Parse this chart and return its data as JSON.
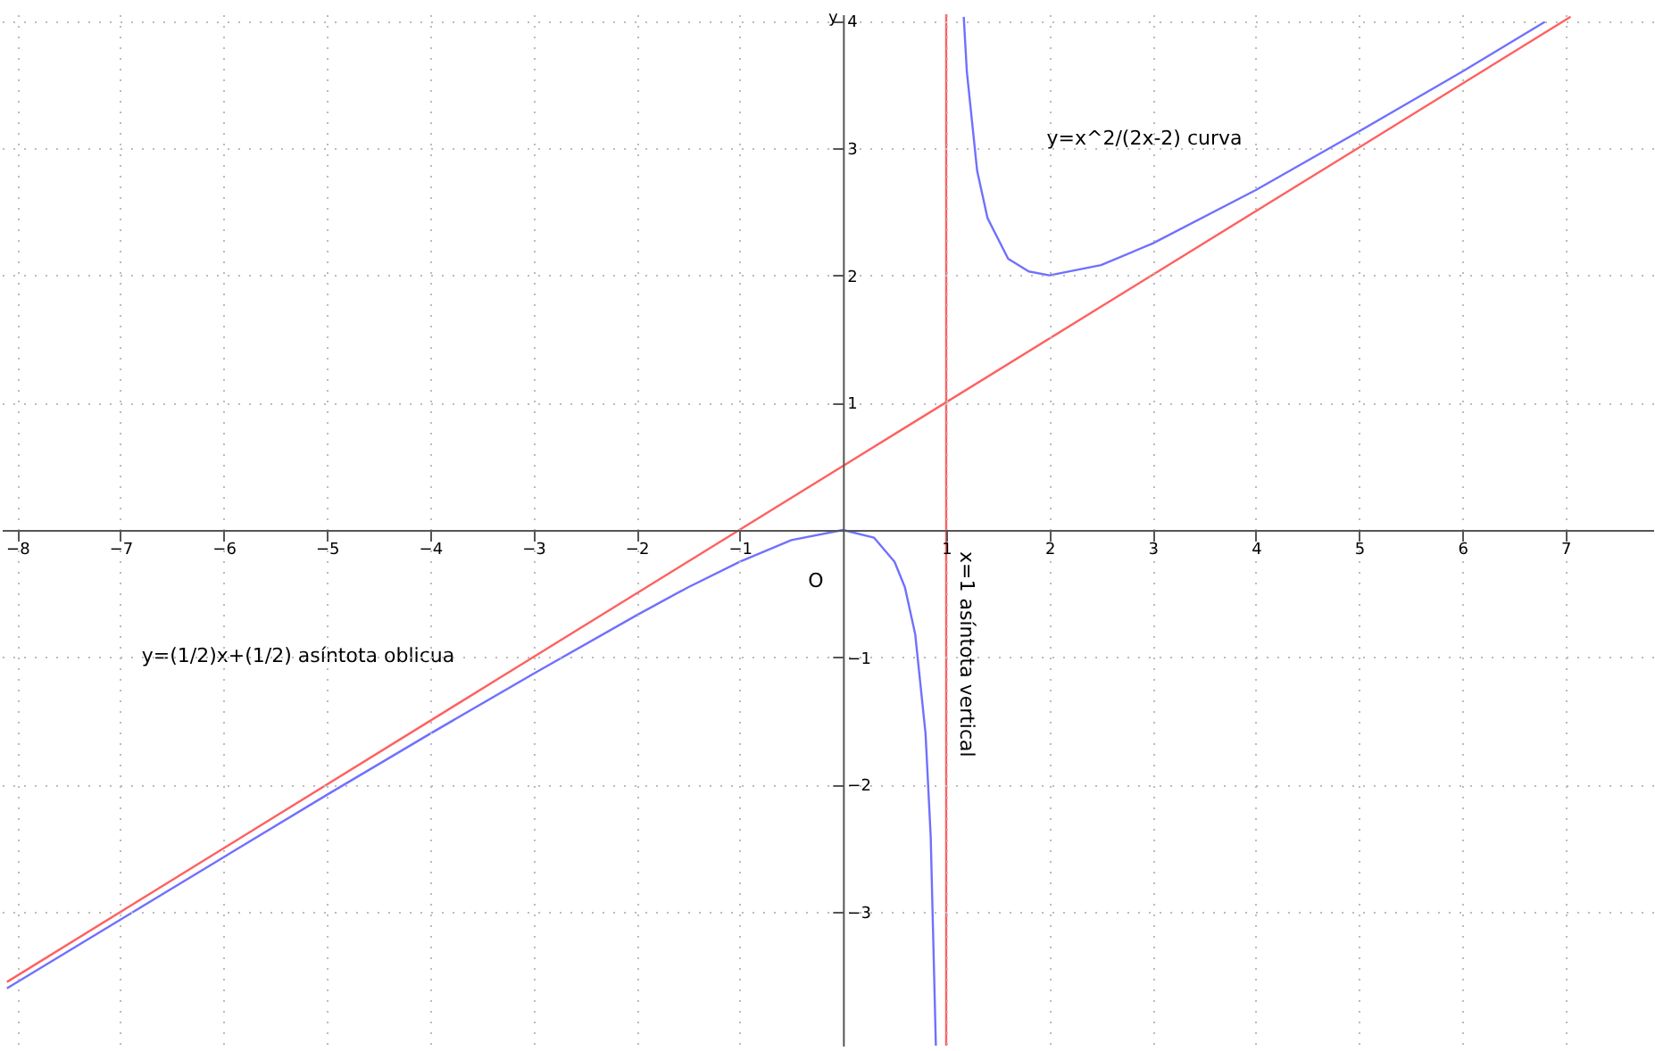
{
  "chart_data": {
    "type": "line",
    "ylabel": "y",
    "xlim": [
      -8.15,
      7.85
    ],
    "ylim": [
      -4.05,
      4.05
    ],
    "xticks": [
      -8,
      -7,
      -6,
      -5,
      -4,
      -3,
      -2,
      -1,
      1,
      2,
      3,
      4,
      5,
      6,
      7
    ],
    "yticks": [
      -3,
      -2,
      -1,
      1,
      2,
      3,
      4
    ],
    "grid": true,
    "line_style": "solid",
    "series": [
      {
        "color": "#7070ff",
        "x": [
          -8.1,
          -7,
          -6,
          -5,
          -4,
          -3,
          -2,
          -1.5,
          -1,
          -0.5,
          0,
          0.3,
          0.5,
          0.6,
          0.7,
          0.8,
          0.85,
          0.9
        ],
        "values": [
          -3.6,
          -3.06,
          -2.57,
          -2.08,
          -1.6,
          -1.13,
          -0.67,
          -0.45,
          -0.25,
          -0.08,
          0,
          -0.06,
          -0.25,
          -0.45,
          -0.82,
          -1.6,
          -2.41,
          -4.05
        ]
      },
      {
        "color": "#7070ff",
        "x": [
          1.17,
          1.2,
          1.3,
          1.4,
          1.6,
          1.8,
          2,
          2.5,
          3,
          4,
          5,
          6,
          6.8
        ],
        "values": [
          4.03,
          3.6,
          2.82,
          2.45,
          2.13,
          2.03,
          2,
          2.08,
          2.25,
          2.67,
          3.13,
          3.6,
          3.99
        ]
      },
      {
        "color": "#ff6060",
        "x": [
          -8.1,
          7.05
        ],
        "values": [
          -3.55,
          4.03
        ]
      }
    ],
    "ref_lines": [
      {
        "axis": "x",
        "value": 1,
        "label": "x=1 asíntota vertical",
        "color": "#ff6060"
      }
    ],
    "annotations": [
      "y=x^2/(2x-2) curva",
      "y=(1/2)x+(1/2)  asíntota oblicua",
      "O"
    ]
  }
}
